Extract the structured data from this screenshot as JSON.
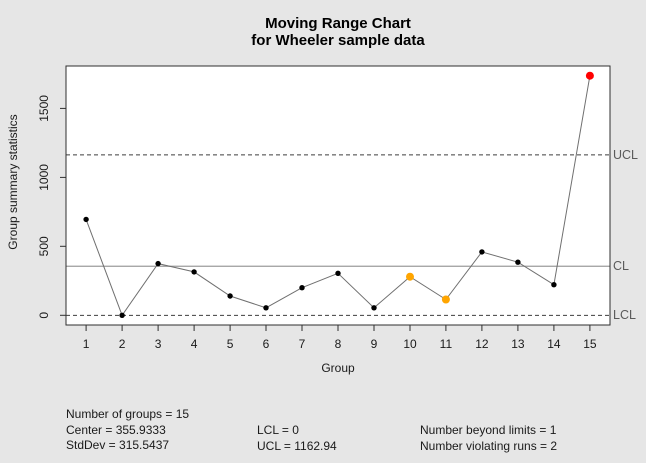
{
  "title": {
    "line1": "Moving Range Chart",
    "line2": "for Wheeler sample data"
  },
  "chart_data": {
    "type": "line",
    "title": "Moving Range Chart",
    "subtitle": "for Wheeler sample data",
    "xlabel": "Group",
    "ylabel": "Group summary statistics",
    "x": [
      1,
      2,
      3,
      4,
      5,
      6,
      7,
      8,
      9,
      10,
      11,
      12,
      13,
      14,
      15
    ],
    "values": [
      695,
      0,
      375,
      315,
      140,
      55,
      200,
      305,
      55,
      280,
      115,
      460,
      385,
      222,
      1737
    ],
    "point_states": [
      "normal",
      "normal",
      "normal",
      "normal",
      "normal",
      "normal",
      "normal",
      "normal",
      "normal",
      "runs",
      "runs",
      "normal",
      "normal",
      "normal",
      "beyond"
    ],
    "x_tick_labels": [
      "1",
      "2",
      "3",
      "4",
      "5",
      "6",
      "7",
      "8",
      "9",
      "10",
      "11",
      "12",
      "13",
      "14",
      "15"
    ],
    "y_ticks": [
      0,
      500,
      1000,
      1500
    ],
    "xlim": [
      0.44,
      15.56
    ],
    "ylim": [
      -70,
      1807
    ],
    "center": 355.9333,
    "ucl": 1162.94,
    "lcl": 0,
    "limit_labels": {
      "ucl": "UCL",
      "cl": "CL",
      "lcl": "LCL"
    },
    "grid": false,
    "legend": "none",
    "colors": {
      "background": "#E6E6E6",
      "plot_background": "#FFFFFF",
      "box_border": "#2F2F2F",
      "segment_line": "#6F6F6F",
      "center_line": "#9C9C9C",
      "limit_line": "#3F3F3F",
      "limit_label_text": "#5A5A5A",
      "axis_text": "#1A1A1A",
      "point_normal": "#000000",
      "point_beyond_limits": "#FF0000",
      "point_violating_runs": "#FFA500"
    }
  },
  "stats": {
    "col1": [
      "Number of groups = 15",
      "Center = 355.9333",
      "StdDev = 315.5437"
    ],
    "col2": [
      "LCL = 0",
      "UCL = 1162.94"
    ],
    "col3": [
      "Number beyond limits = 1",
      "Number violating runs = 2"
    ]
  }
}
